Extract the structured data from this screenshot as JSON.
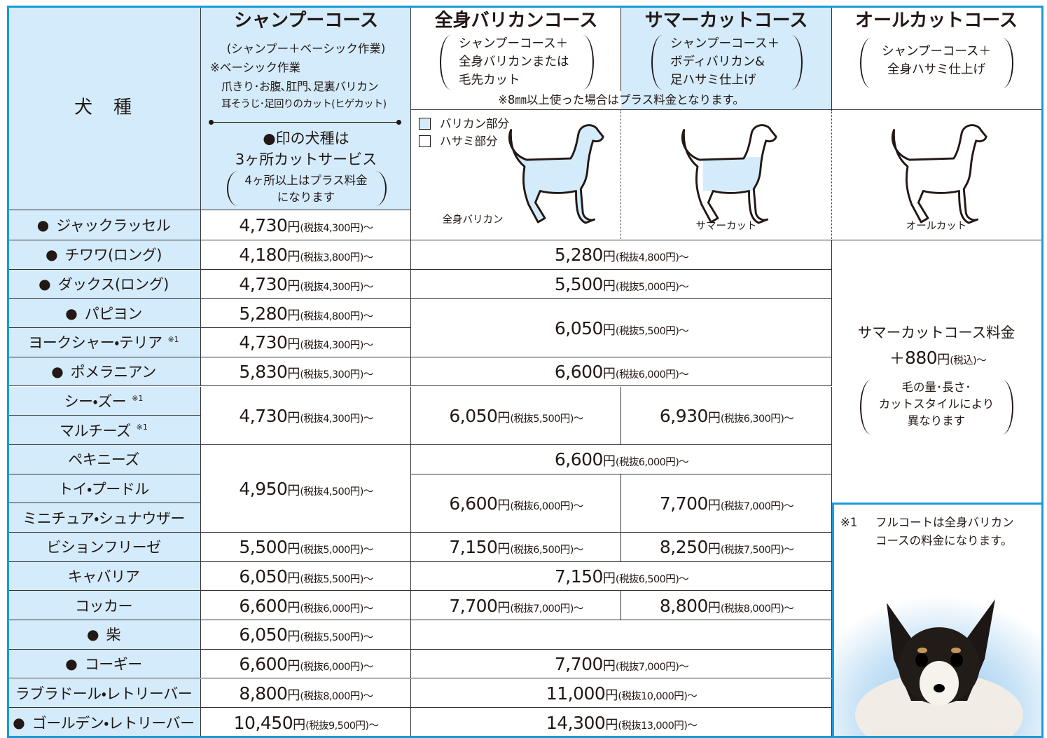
{
  "header": {
    "breed_label": "犬　種",
    "shampoo": {
      "title": "シャンプーコース",
      "subtitle": "(シャンプー＋ベーシック作業)",
      "basic_label": "※ベーシック作業",
      "basic_lines": [
        "爪きり･お腹､肛門､足裏バリカン",
        "耳そうじ･足回りのカット(ヒゲカット)"
      ],
      "service_lines": [
        "●印の犬種は",
        "3ヶ所カットサービス"
      ],
      "service_note": [
        "4ヶ所以上はプラス料金",
        "になります"
      ]
    },
    "clipper": {
      "title": "全身バリカンコース",
      "lines": [
        "シャンプーコース＋",
        "全身バリカンまたは",
        "毛先カット"
      ]
    },
    "summer": {
      "title": "サマーカットコース",
      "lines": [
        "シャンプーコース＋",
        "ボディバリカン&",
        "足ハサミ仕上げ"
      ]
    },
    "allcut": {
      "title": "オールカットコース",
      "lines": [
        "シャンプーコース＋",
        "全身ハサミ仕上げ"
      ]
    },
    "clipper_note": "※8㎜以上使った場合はプラス料金となります。",
    "legend": [
      "バリカン部分",
      "ハサミ部分"
    ],
    "illustrations": [
      "全身バリカン",
      "サマーカット",
      "オールカット"
    ]
  },
  "breeds": [
    {
      "mark": "●",
      "name": "ジャックラッセル"
    },
    {
      "mark": "●",
      "name": "チワワ(ロング)"
    },
    {
      "mark": "●",
      "name": "ダックス(ロング)"
    },
    {
      "mark": "●",
      "name": "パピヨン"
    },
    {
      "name": "ヨークシャー・テリア",
      "note": "※1"
    },
    {
      "mark": "●",
      "name": "ポメラニアン"
    },
    {
      "name": "シー・ズー",
      "note": "※1"
    },
    {
      "name": "マルチーズ",
      "note": "※1"
    },
    {
      "name": "ペキニーズ"
    },
    {
      "name": "トイ・プードル"
    },
    {
      "name": "ミニチュア・シュナウザー"
    },
    {
      "name": "ビションフリーゼ"
    },
    {
      "name": "キャバリア"
    },
    {
      "name": "コッカー"
    },
    {
      "mark": "●",
      "name": "柴"
    },
    {
      "mark": "●",
      "name": "コーギー"
    },
    {
      "name": "ラブラドール・レトリーバー"
    },
    {
      "mark": "●",
      "name": "ゴールデン・レトリーバー"
    }
  ],
  "shampoo": [
    {
      "amount": "4,730",
      "unit": "円",
      "tax": "(税抜4,300円)～"
    },
    {
      "amount": "4,180",
      "unit": "円",
      "tax": "(税抜3,800円)～"
    },
    {
      "amount": "4,730",
      "unit": "円",
      "tax": "(税抜4,300円)～"
    },
    {
      "amount": "5,280",
      "unit": "円",
      "tax": "(税抜4,800円)～"
    },
    {
      "amount": "4,730",
      "unit": "円",
      "tax": "(税抜4,300円)～"
    },
    {
      "amount": "5,830",
      "unit": "円",
      "tax": "(税抜5,300円)～"
    },
    {
      "amount": "4,730",
      "unit": "円",
      "tax": "(税抜4,300円)～"
    },
    {
      "amount": "4,950",
      "unit": "円",
      "tax": "(税抜4,500円)～"
    },
    {
      "amount": "5,500",
      "unit": "円",
      "tax": "(税抜5,000円)～"
    },
    {
      "amount": "6,050",
      "unit": "円",
      "tax": "(税抜5,500円)～"
    },
    {
      "amount": "6,600",
      "unit": "円",
      "tax": "(税抜6,000円)～"
    },
    {
      "amount": "6,050",
      "unit": "円",
      "tax": "(税抜5,500円)～"
    },
    {
      "amount": "6,600",
      "unit": "円",
      "tax": "(税抜6,000円)～"
    },
    {
      "amount": "8,800",
      "unit": "円",
      "tax": "(税抜8,000円)～"
    },
    {
      "amount": "10,450",
      "unit": "円",
      "tax": "(税抜9,500円)～"
    }
  ],
  "grooming": [
    {
      "both": {
        "amount": "5,280",
        "unit": "円",
        "tax": "(税抜4,800円)～"
      }
    },
    {
      "both": {
        "amount": "5,500",
        "unit": "円",
        "tax": "(税抜5,000円)～"
      }
    },
    {
      "both": {
        "amount": "6,050",
        "unit": "円",
        "tax": "(税抜5,500円)～"
      }
    },
    {
      "both": {
        "amount": "6,600",
        "unit": "円",
        "tax": "(税抜6,000円)～"
      }
    },
    {
      "clipper": {
        "amount": "6,050",
        "unit": "円",
        "tax": "(税抜5,500円)～"
      },
      "summer": {
        "amount": "6,930",
        "unit": "円",
        "tax": "(税抜6,300円)～"
      }
    },
    {
      "both": {
        "amount": "6,600",
        "unit": "円",
        "tax": "(税抜6,000円)～"
      }
    },
    {
      "clipper": {
        "amount": "6,600",
        "unit": "円",
        "tax": "(税抜6,000円)～"
      },
      "summer": {
        "amount": "7,700",
        "unit": "円",
        "tax": "(税抜7,000円)～"
      }
    },
    {
      "clipper": {
        "amount": "7,150",
        "unit": "円",
        "tax": "(税抜6,500円)～"
      },
      "summer": {
        "amount": "8,250",
        "unit": "円",
        "tax": "(税抜7,500円)～"
      }
    },
    {
      "both": {
        "amount": "7,150",
        "unit": "円",
        "tax": "(税抜6,500円)～"
      }
    },
    {
      "clipper": {
        "amount": "7,700",
        "unit": "円",
        "tax": "(税抜7,000円)～"
      },
      "summer": {
        "amount": "8,800",
        "unit": "円",
        "tax": "(税抜8,000円)～"
      }
    },
    {
      "both": {
        "amount": "7,700",
        "unit": "円",
        "tax": "(税抜7,000円)～"
      }
    },
    {
      "both": {
        "amount": "11,000",
        "unit": "円",
        "tax": "(税抜10,000円)～"
      }
    },
    {
      "both": {
        "amount": "14,300",
        "unit": "円",
        "tax": "(税抜13,000円)～"
      }
    }
  ],
  "allcut": {
    "line": "サマーカットコース料金",
    "plus": "＋",
    "amount": "880",
    "unit": "円",
    "tax": "(税込)～",
    "note": [
      "毛の量･長さ･",
      "カットスタイルにより",
      "異なります"
    ]
  },
  "footnote": {
    "mark": "※1",
    "text": [
      "フルコートは全身バリカン",
      "コースの料金になります。"
    ]
  }
}
